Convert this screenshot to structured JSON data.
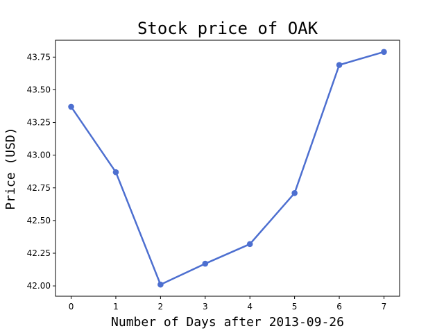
{
  "chart_data": {
    "type": "line",
    "title": "Stock price of OAK",
    "xlabel": "Number of Days after 2013-09-26",
    "ylabel": "Price (USD)",
    "x": [
      0,
      1,
      2,
      3,
      4,
      5,
      6,
      7
    ],
    "series": [
      {
        "values": [
          43.37,
          42.87,
          42.01,
          42.17,
          42.32,
          42.71,
          43.69,
          43.79
        ]
      }
    ],
    "x_ticks": [
      "0",
      "1",
      "2",
      "3",
      "4",
      "5",
      "6",
      "7"
    ],
    "y_ticks": [
      "42.00",
      "42.25",
      "42.50",
      "42.75",
      "43.00",
      "43.25",
      "43.50",
      "43.75"
    ],
    "xlim": [
      -0.35,
      7.35
    ],
    "ylim": [
      41.921,
      43.879
    ],
    "grid": false,
    "line_color": "#4d6fd0",
    "marker": "circle"
  }
}
